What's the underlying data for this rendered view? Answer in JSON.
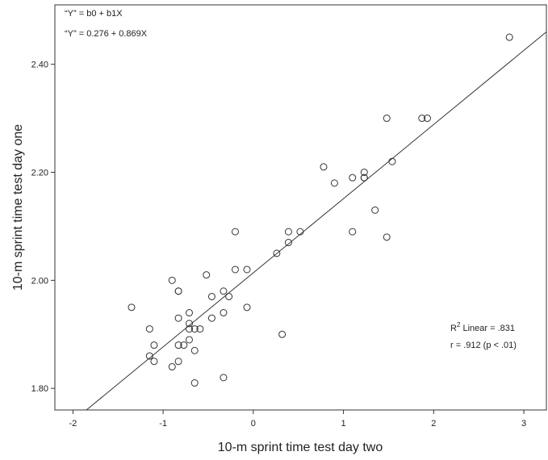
{
  "chart_data": {
    "type": "scatter",
    "xlabel": "10-m sprint time test day two",
    "ylabel": "10-m sprint time test day one",
    "xlim": [
      -2.2,
      3.25
    ],
    "ylim": [
      1.76,
      2.51
    ],
    "xticks": [
      -2,
      -1,
      0,
      1,
      2,
      3
    ],
    "yticks": [
      1.8,
      2.0,
      2.2,
      2.4
    ],
    "xtick_labels": [
      "-2",
      "-1",
      "0",
      "1",
      "2",
      "3"
    ],
    "ytick_labels": [
      "1.80",
      "2.00",
      "2.20",
      "2.40"
    ],
    "grid": false,
    "annotations": {
      "eq_general": "“Y” = b0 + b1X",
      "eq_fit": "“Y” = 0.276 + 0.869X",
      "r2_prefix": "R",
      "r2_sup": "2",
      "r2_suffix": " Linear = .831",
      "r_text": "r = .912 (p < .01)"
    },
    "fit_line": {
      "x": [
        -1.85,
        3.25
      ],
      "y": [
        1.76,
        2.46
      ]
    },
    "points": [
      {
        "x": -1.35,
        "y": 1.95
      },
      {
        "x": -1.15,
        "y": 1.91
      },
      {
        "x": -1.15,
        "y": 1.86
      },
      {
        "x": -1.1,
        "y": 1.88
      },
      {
        "x": -1.1,
        "y": 1.85
      },
      {
        "x": -0.9,
        "y": 2.0
      },
      {
        "x": -0.9,
        "y": 1.84
      },
      {
        "x": -0.83,
        "y": 1.98
      },
      {
        "x": -0.83,
        "y": 1.98
      },
      {
        "x": -0.83,
        "y": 1.93
      },
      {
        "x": -0.83,
        "y": 1.88
      },
      {
        "x": -0.83,
        "y": 1.85
      },
      {
        "x": -0.77,
        "y": 1.88
      },
      {
        "x": -0.71,
        "y": 1.94
      },
      {
        "x": -0.71,
        "y": 1.92
      },
      {
        "x": -0.71,
        "y": 1.91
      },
      {
        "x": -0.71,
        "y": 1.89
      },
      {
        "x": -0.65,
        "y": 1.91
      },
      {
        "x": -0.65,
        "y": 1.87
      },
      {
        "x": -0.65,
        "y": 1.81
      },
      {
        "x": -0.59,
        "y": 1.91
      },
      {
        "x": -0.52,
        "y": 2.01
      },
      {
        "x": -0.46,
        "y": 1.97
      },
      {
        "x": -0.46,
        "y": 1.93
      },
      {
        "x": -0.33,
        "y": 1.98
      },
      {
        "x": -0.33,
        "y": 1.94
      },
      {
        "x": -0.33,
        "y": 1.82
      },
      {
        "x": -0.27,
        "y": 1.97
      },
      {
        "x": -0.2,
        "y": 2.09
      },
      {
        "x": -0.2,
        "y": 2.02
      },
      {
        "x": -0.07,
        "y": 2.02
      },
      {
        "x": -0.07,
        "y": 1.95
      },
      {
        "x": 0.26,
        "y": 2.05
      },
      {
        "x": 0.32,
        "y": 1.9
      },
      {
        "x": 0.39,
        "y": 2.09
      },
      {
        "x": 0.39,
        "y": 2.07
      },
      {
        "x": 0.52,
        "y": 2.09
      },
      {
        "x": 0.78,
        "y": 2.21
      },
      {
        "x": 0.9,
        "y": 2.18
      },
      {
        "x": 1.1,
        "y": 2.19
      },
      {
        "x": 1.1,
        "y": 2.09
      },
      {
        "x": 1.23,
        "y": 2.2
      },
      {
        "x": 1.23,
        "y": 2.19
      },
      {
        "x": 1.23,
        "y": 2.19
      },
      {
        "x": 1.35,
        "y": 2.13
      },
      {
        "x": 1.48,
        "y": 2.3
      },
      {
        "x": 1.48,
        "y": 2.08
      },
      {
        "x": 1.54,
        "y": 2.22
      },
      {
        "x": 1.87,
        "y": 2.3
      },
      {
        "x": 1.93,
        "y": 2.3
      },
      {
        "x": 2.84,
        "y": 2.45
      }
    ]
  }
}
